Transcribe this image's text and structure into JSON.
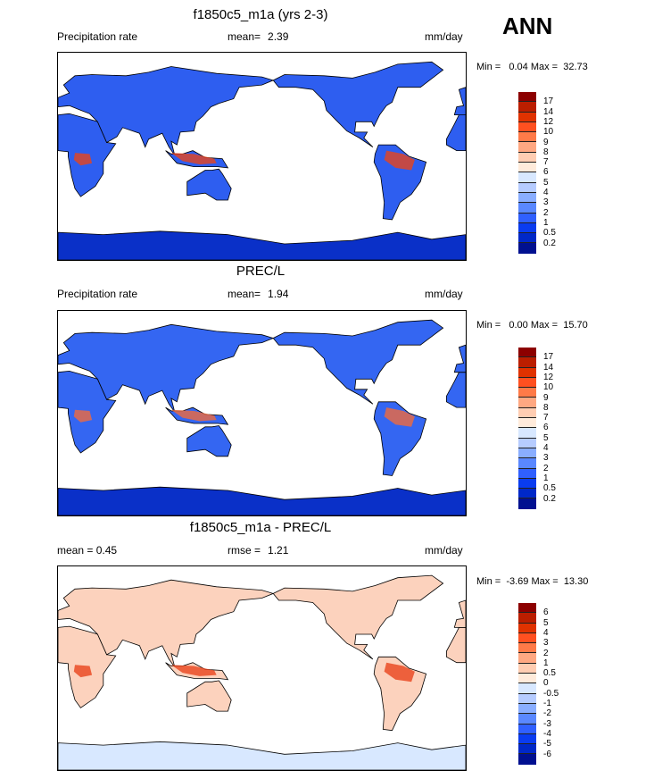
{
  "header": {
    "season": "ANN"
  },
  "chart_data": [
    {
      "type": "heatmap",
      "title": "f1850c5_m1a (yrs 2-3)",
      "left_label": "Precipitation rate",
      "stat_label": "mean=",
      "stat_value": "2.39",
      "units": "mm/day",
      "minmax": "Min =   0.04 Max =  32.73",
      "colorbar_labels": [
        "17",
        "14",
        "12",
        "10",
        "9",
        "8",
        "7",
        "6",
        "5",
        "4",
        "3",
        "2",
        "1",
        "0.5",
        "0.2"
      ],
      "land_color": "#2e5ef0",
      "hot_color": "#e8441c",
      "ocean_color": "#ffffff",
      "antarctic_color": "#0a30c8"
    },
    {
      "type": "heatmap",
      "title": "PREC/L",
      "left_label": "Precipitation rate",
      "stat_label": "mean=",
      "stat_value": "1.94",
      "units": "mm/day",
      "minmax": "Min =   0.00 Max =  15.70",
      "colorbar_labels": [
        "17",
        "14",
        "12",
        "10",
        "9",
        "8",
        "7",
        "6",
        "5",
        "4",
        "3",
        "2",
        "1",
        "0.5",
        "0.2"
      ],
      "land_color": "#3466f2",
      "hot_color": "#f06a3c",
      "ocean_color": "#ffffff",
      "antarctic_color": "#0a30c8"
    },
    {
      "type": "heatmap",
      "title": "f1850c5_m1a - PREC/L",
      "left_label": "mean =   0.45",
      "stat_label": "rmse =",
      "stat_value": "1.21",
      "units": "mm/day",
      "minmax": "Min =  -3.69 Max =  13.30",
      "colorbar_labels": [
        "6",
        "5",
        "4",
        "3",
        "2",
        "1",
        "0.5",
        "0",
        "-0.5",
        "-1",
        "-2",
        "-3",
        "-4",
        "-5",
        "-6"
      ],
      "land_color": "#fcd2bd",
      "hot_color": "#e8441c",
      "ocean_color": "#ffffff",
      "antarctic_color": "#d8e8ff"
    }
  ],
  "colorbar_colors": [
    "#8c0000",
    "#bb1e00",
    "#e03200",
    "#ff5020",
    "#ff7a48",
    "#ffa882",
    "#ffcdb2",
    "#ffebdb",
    "#d8e8ff",
    "#b6ccff",
    "#8aaeff",
    "#5a88ff",
    "#3060ff",
    "#0a3cf0",
    "#0028c8",
    "#001090"
  ]
}
